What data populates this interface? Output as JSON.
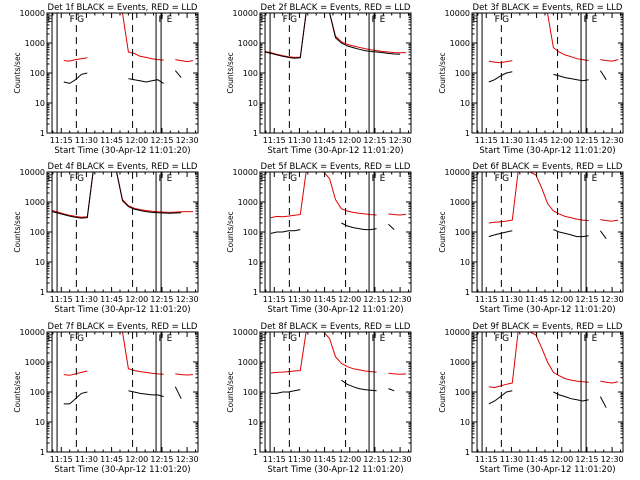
{
  "figure": {
    "background": "#ffffff",
    "axis_color": "#000000",
    "events_color": "#000000",
    "lld_color": "#e00000"
  },
  "chart_data": [
    {
      "type": "line",
      "title": "Det 1f BLACK = Events, RED = LLD",
      "xlabel": "Start Time (30-Apr-12 11:01:20)",
      "ylabel": "Counts/sec",
      "yscale": "log",
      "ylim": [
        1,
        10000
      ],
      "xticks": [
        "11:15",
        "11:30",
        "11:45",
        "12:00",
        "12:15",
        "12:30"
      ],
      "ytick_labels": [
        "1",
        "10",
        "100",
        "1000",
        "10000"
      ],
      "markers": [
        "E",
        "F",
        "G",
        "F",
        "E"
      ],
      "events_values": [
        null,
        null,
        50,
        45,
        60,
        90,
        100,
        null,
        null,
        null,
        null,
        null,
        null,
        65,
        60,
        55,
        50,
        55,
        60,
        45,
        null,
        120,
        70,
        null,
        null
      ],
      "lld_values": [
        null,
        null,
        260,
        250,
        280,
        300,
        320,
        null,
        null,
        null,
        null,
        null,
        10000,
        500,
        450,
        360,
        330,
        300,
        280,
        270,
        null,
        280,
        260,
        240,
        260
      ]
    },
    {
      "type": "line",
      "title": "Det 2f BLACK = Events, RED = LLD",
      "xlabel": "Start Time (30-Apr-12 11:01:20)",
      "ylabel": "Counts/sec",
      "yscale": "log",
      "ylim": [
        1,
        10000
      ],
      "xticks": [
        "11:15",
        "11:30",
        "11:45",
        "12:00",
        "12:15",
        "12:30"
      ],
      "ytick_labels": [
        "1",
        "10",
        "100",
        "1000",
        "10000"
      ],
      "markers": [
        "E",
        "F",
        "G",
        "F",
        "E"
      ],
      "events_values": [
        500,
        450,
        400,
        360,
        330,
        310,
        320,
        10000,
        10000,
        10000,
        10000,
        10000,
        1500,
        1000,
        800,
        700,
        620,
        560,
        520,
        500,
        480,
        450,
        430,
        420,
        null
      ],
      "lld_values": [
        520,
        480,
        420,
        380,
        350,
        330,
        340,
        10000,
        10000,
        10000,
        10000,
        10000,
        1700,
        1100,
        900,
        800,
        720,
        650,
        600,
        560,
        520,
        500,
        480,
        470,
        480
      ]
    },
    {
      "type": "line",
      "title": "Det 3f BLACK = Events, RED = LLD",
      "xlabel": "Start Time (30-Apr-12 11:01:20)",
      "ylabel": "Counts/sec",
      "yscale": "log",
      "ylim": [
        1,
        10000
      ],
      "xticks": [
        "11:15",
        "11:30",
        "11:45",
        "12:00",
        "12:15",
        "12:30"
      ],
      "ytick_labels": [
        "1",
        "10",
        "100",
        "1000",
        "10000"
      ],
      "markers": [
        "E",
        "F",
        "G",
        "F",
        "E"
      ],
      "events_values": [
        null,
        null,
        50,
        60,
        80,
        100,
        110,
        null,
        null,
        null,
        null,
        null,
        null,
        90,
        80,
        70,
        65,
        60,
        55,
        60,
        null,
        120,
        60,
        null,
        null
      ],
      "lld_values": [
        null,
        null,
        250,
        230,
        220,
        240,
        260,
        null,
        null,
        null,
        null,
        null,
        10000,
        700,
        500,
        400,
        350,
        300,
        280,
        260,
        null,
        280,
        260,
        250,
        280
      ]
    },
    {
      "type": "line",
      "title": "Det 4f BLACK = Events, RED = LLD",
      "xlabel": "Start Time (30-Apr-12 11:01:20)",
      "ylabel": "Counts/sec",
      "yscale": "log",
      "ylim": [
        1,
        10000
      ],
      "xticks": [
        "11:15",
        "11:30",
        "11:45",
        "12:00",
        "12:15",
        "12:30"
      ],
      "ytick_labels": [
        "1",
        "10",
        "100",
        "1000",
        "10000"
      ],
      "markers": [
        "E",
        "F",
        "G",
        "F",
        "E"
      ],
      "events_values": [
        480,
        430,
        380,
        340,
        310,
        290,
        300,
        10000,
        10000,
        10000,
        10000,
        10000,
        1100,
        700,
        580,
        520,
        480,
        450,
        440,
        430,
        420,
        430,
        440,
        null,
        null
      ],
      "lld_values": [
        520,
        460,
        400,
        360,
        330,
        310,
        320,
        10000,
        10000,
        10000,
        10000,
        10000,
        1200,
        750,
        620,
        560,
        520,
        490,
        470,
        460,
        450,
        460,
        470,
        480,
        480
      ]
    },
    {
      "type": "line",
      "title": "Det 5f BLACK = Events, RED = LLD",
      "xlabel": "Start Time (30-Apr-12 11:01:20)",
      "ylabel": "Counts/sec",
      "yscale": "log",
      "ylim": [
        1,
        10000
      ],
      "xticks": [
        "11:15",
        "11:30",
        "11:45",
        "12:00",
        "12:15",
        "12:30"
      ],
      "ytick_labels": [
        "1",
        "10",
        "100",
        "1000",
        "10000"
      ],
      "markers": [
        "E",
        "F",
        "G",
        "F",
        "E"
      ],
      "events_values": [
        null,
        90,
        100,
        100,
        110,
        110,
        120,
        null,
        null,
        null,
        null,
        null,
        null,
        200,
        160,
        140,
        130,
        120,
        120,
        130,
        null,
        180,
        120,
        null,
        null
      ],
      "lld_values": [
        null,
        300,
        330,
        320,
        340,
        360,
        380,
        10000,
        10000,
        10000,
        10000,
        6000,
        1200,
        600,
        500,
        450,
        420,
        400,
        380,
        370,
        null,
        400,
        380,
        370,
        390
      ]
    },
    {
      "type": "line",
      "title": "Det 6f BLACK = Events, RED = LLD",
      "xlabel": "Start Time (30-Apr-12 11:01:20)",
      "ylabel": "Counts/sec",
      "yscale": "log",
      "ylim": [
        1,
        10000
      ],
      "xticks": [
        "11:15",
        "11:30",
        "11:45",
        "12:00",
        "12:15",
        "12:30"
      ],
      "ytick_labels": [
        "1",
        "10",
        "100",
        "1000",
        "10000"
      ],
      "markers": [
        "E",
        "F",
        "G",
        "F",
        "E"
      ],
      "events_values": [
        null,
        null,
        70,
        80,
        90,
        100,
        110,
        null,
        null,
        null,
        null,
        null,
        null,
        120,
        100,
        90,
        80,
        70,
        70,
        75,
        null,
        110,
        60,
        null,
        null
      ],
      "lld_values": [
        null,
        null,
        200,
        210,
        220,
        230,
        250,
        10000,
        10000,
        10000,
        8000,
        3000,
        900,
        500,
        400,
        330,
        300,
        270,
        250,
        240,
        null,
        260,
        240,
        230,
        250
      ]
    },
    {
      "type": "line",
      "title": "Det 7f BLACK = Events, RED = LLD",
      "xlabel": "Start Time (30-Apr-12 11:01:20)",
      "ylabel": "Counts/sec",
      "yscale": "log",
      "ylim": [
        1,
        10000
      ],
      "xticks": [
        "11:15",
        "11:30",
        "11:45",
        "12:00",
        "12:15",
        "12:30"
      ],
      "ytick_labels": [
        "1",
        "10",
        "100",
        "1000",
        "10000"
      ],
      "markers": [
        "E",
        "F",
        "G",
        "F",
        "E"
      ],
      "events_values": [
        null,
        null,
        40,
        40,
        60,
        90,
        100,
        null,
        null,
        null,
        null,
        null,
        null,
        110,
        100,
        90,
        85,
        80,
        80,
        70,
        null,
        150,
        60,
        null,
        null
      ],
      "lld_values": [
        null,
        null,
        380,
        360,
        400,
        450,
        500,
        null,
        null,
        null,
        null,
        null,
        10000,
        600,
        520,
        480,
        450,
        420,
        400,
        390,
        null,
        400,
        380,
        370,
        380
      ]
    },
    {
      "type": "line",
      "title": "Det 8f BLACK = Events, RED = LLD",
      "xlabel": "Start Time (30-Apr-12 11:01:20)",
      "ylabel": "Counts/sec",
      "yscale": "log",
      "ylim": [
        1,
        10000
      ],
      "xticks": [
        "11:15",
        "11:30",
        "11:45",
        "12:00",
        "12:15",
        "12:30"
      ],
      "ytick_labels": [
        "1",
        "10",
        "100",
        "1000",
        "10000"
      ],
      "markers": [
        "E",
        "F",
        "G",
        "F",
        "E"
      ],
      "events_values": [
        null,
        90,
        90,
        100,
        100,
        110,
        120,
        null,
        null,
        null,
        null,
        null,
        null,
        250,
        180,
        150,
        130,
        120,
        115,
        110,
        null,
        130,
        110,
        null,
        null
      ],
      "lld_values": [
        null,
        430,
        450,
        460,
        480,
        500,
        520,
        10000,
        10000,
        10000,
        10000,
        6000,
        1500,
        900,
        700,
        600,
        550,
        500,
        480,
        460,
        null,
        420,
        400,
        390,
        400
      ]
    },
    {
      "type": "line",
      "title": "Det 9f BLACK = Events, RED = LLD",
      "xlabel": "Start Time (30-Apr-12 11:01:20)",
      "ylabel": "Counts/sec",
      "yscale": "log",
      "ylim": [
        1,
        10000
      ],
      "xticks": [
        "11:15",
        "11:30",
        "11:45",
        "12:00",
        "12:15",
        "12:30"
      ],
      "ytick_labels": [
        "1",
        "10",
        "100",
        "1000",
        "10000"
      ],
      "markers": [
        "E",
        "F",
        "G",
        "F",
        "E"
      ],
      "events_values": [
        null,
        null,
        40,
        50,
        70,
        100,
        110,
        null,
        null,
        null,
        null,
        null,
        null,
        100,
        80,
        70,
        60,
        55,
        50,
        55,
        null,
        70,
        30,
        null,
        null
      ],
      "lld_values": [
        null,
        null,
        150,
        140,
        160,
        180,
        200,
        10000,
        10000,
        10000,
        8000,
        3000,
        1000,
        450,
        350,
        280,
        250,
        230,
        220,
        210,
        null,
        230,
        210,
        200,
        220
      ]
    }
  ]
}
